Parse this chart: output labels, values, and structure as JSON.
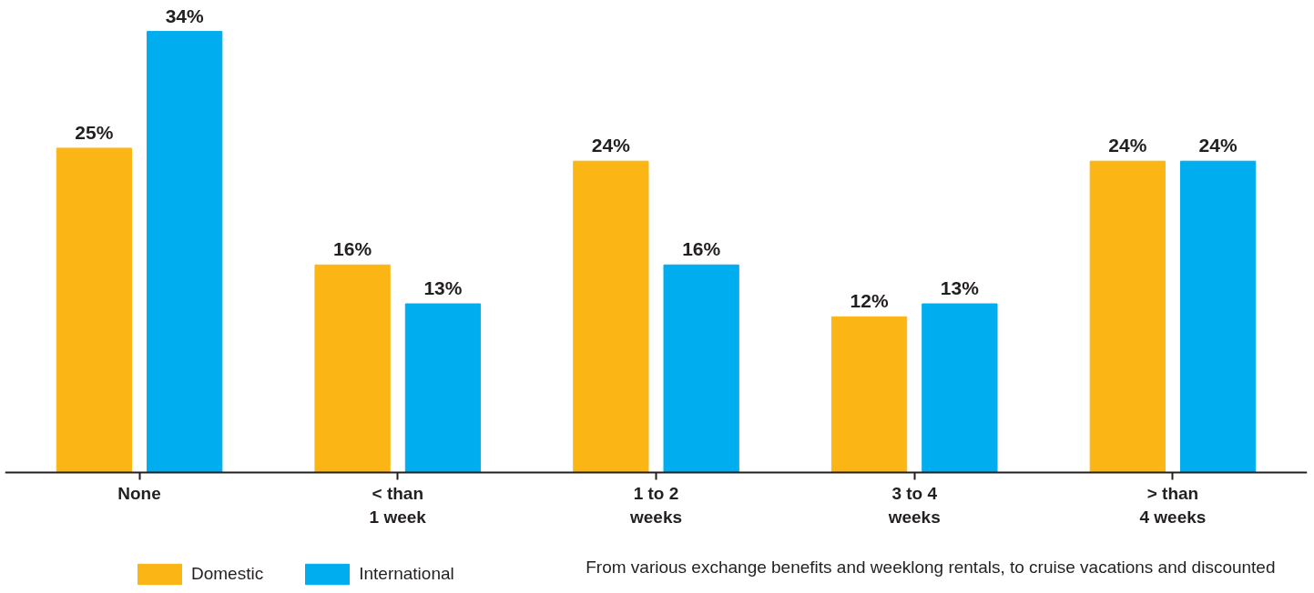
{
  "chart_data": {
    "type": "bar",
    "categories": [
      "None",
      "< than 1 week",
      "1 to 2 weeks",
      "3 to 4 weeks",
      "> than 4 weeks"
    ],
    "series": [
      {
        "name": "Domestic",
        "color": "#fbb616",
        "values": [
          25,
          16,
          24,
          12,
          24
        ],
        "value_labels": [
          "25%",
          "16%",
          "24%",
          "12%",
          "24%"
        ]
      },
      {
        "name": "International",
        "color": "#00adef",
        "values": [
          34,
          13,
          16,
          13,
          24
        ],
        "value_labels": [
          "34%",
          "13%",
          "16%",
          "13%",
          "24%"
        ]
      }
    ],
    "legend": "bottom",
    "grid": false,
    "annotations": [
      "From various exchange benefits and weeklong rentals, to cruise vacations and discounted"
    ]
  }
}
